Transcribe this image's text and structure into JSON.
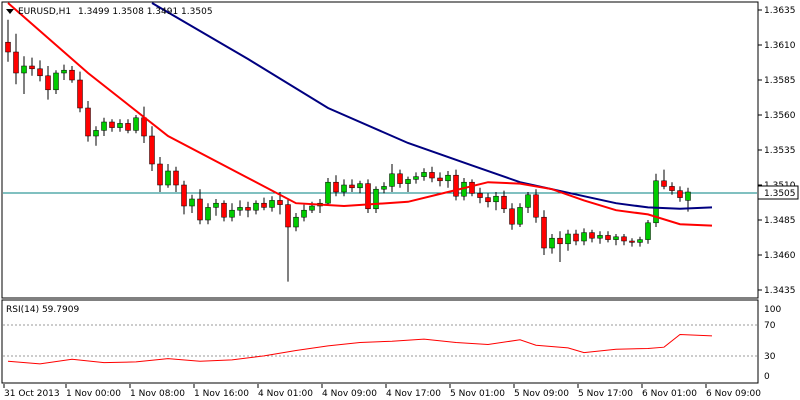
{
  "header": {
    "menu_icon": "triangle-down-icon",
    "symbol_label": "EURUSD,H1",
    "ohlc_label": "1.3499 1.3508 1.3491 1.3505"
  },
  "price_axis": {
    "labels": [
      "1.3635",
      "1.3610",
      "1.3585",
      "1.3560",
      "1.3535",
      "1.3510",
      "1.3485",
      "1.3460",
      "1.3435"
    ],
    "current_price_label": "1.3505"
  },
  "rsi_panel": {
    "title": "RSI(14) 59.7909",
    "axis_labels": [
      "100",
      "70",
      "30",
      "0"
    ]
  },
  "time_axis": {
    "labels": [
      "31 Oct 2013",
      "1 Nov 00:00",
      "1 Nov 08:00",
      "1 Nov 16:00",
      "4 Nov 01:00",
      "4 Nov 09:00",
      "4 Nov 17:00",
      "5 Nov 01:00",
      "5 Nov 09:00",
      "5 Nov 17:00",
      "6 Nov 01:00",
      "6 Nov 09:00"
    ]
  },
  "colors": {
    "background": "#ffffff",
    "bull_candle": "#00cc00",
    "bear_candle": "#ff0000",
    "wick": "#000000",
    "ma_fast": "#ff0000",
    "ma_slow": "#000080",
    "rsi_line": "#ff0000",
    "current_price_line": "#008080",
    "level_line": "#999999"
  },
  "chart_data": [
    {
      "type": "candlestick",
      "title": "EURUSD,H1",
      "ylim": [
        1.3425,
        1.3645
      ],
      "y_ticks": [
        1.3635,
        1.361,
        1.3585,
        1.356,
        1.3535,
        1.351,
        1.3485,
        1.346,
        1.3435
      ],
      "grid": false,
      "current_price": 1.3505,
      "candles": [
        [
          1.3612,
          1.3628,
          1.3598,
          1.3605
        ],
        [
          1.3605,
          1.3618,
          1.3582,
          1.359
        ],
        [
          1.359,
          1.3602,
          1.3575,
          1.3595
        ],
        [
          1.3595,
          1.3601,
          1.3588,
          1.3593
        ],
        [
          1.3593,
          1.3599,
          1.3584,
          1.3588
        ],
        [
          1.3588,
          1.3595,
          1.3571,
          1.3578
        ],
        [
          1.3578,
          1.3592,
          1.3575,
          1.359
        ],
        [
          1.359,
          1.3596,
          1.3585,
          1.3592
        ],
        [
          1.3592,
          1.3595,
          1.3583,
          1.3585
        ],
        [
          1.3585,
          1.3591,
          1.3562,
          1.3565
        ],
        [
          1.3565,
          1.357,
          1.3541,
          1.3545
        ],
        [
          1.3545,
          1.3552,
          1.3538,
          1.3549
        ],
        [
          1.3549,
          1.3558,
          1.3545,
          1.3555
        ],
        [
          1.3555,
          1.3557,
          1.3548,
          1.3551
        ],
        [
          1.3551,
          1.3557,
          1.3548,
          1.3554
        ],
        [
          1.3554,
          1.3557,
          1.3547,
          1.3549
        ],
        [
          1.3549,
          1.356,
          1.3547,
          1.3558
        ],
        [
          1.3558,
          1.3566,
          1.354,
          1.3545
        ],
        [
          1.3545,
          1.3552,
          1.352,
          1.3525
        ],
        [
          1.3525,
          1.353,
          1.3505,
          1.351
        ],
        [
          1.351,
          1.3525,
          1.3508,
          1.352
        ],
        [
          1.352,
          1.3523,
          1.3505,
          1.351
        ],
        [
          1.351,
          1.3513,
          1.3489,
          1.3495
        ],
        [
          1.3495,
          1.3503,
          1.349,
          1.35
        ],
        [
          1.35,
          1.3507,
          1.3482,
          1.3485
        ],
        [
          1.3485,
          1.3497,
          1.3482,
          1.3494
        ],
        [
          1.3494,
          1.35,
          1.3488,
          1.3497
        ],
        [
          1.3497,
          1.3499,
          1.3484,
          1.3487
        ],
        [
          1.3487,
          1.3497,
          1.3484,
          1.3492
        ],
        [
          1.3492,
          1.3499,
          1.3488,
          1.3494
        ],
        [
          1.3494,
          1.3498,
          1.3487,
          1.3492
        ],
        [
          1.3492,
          1.3499,
          1.3489,
          1.3497
        ],
        [
          1.3497,
          1.3501,
          1.3492,
          1.3494
        ],
        [
          1.3494,
          1.3502,
          1.3491,
          1.3499
        ],
        [
          1.3499,
          1.3505,
          1.3489,
          1.3496
        ],
        [
          1.3496,
          1.35,
          1.3441,
          1.348
        ],
        [
          1.348,
          1.349,
          1.3477,
          1.3487
        ],
        [
          1.3487,
          1.3496,
          1.3484,
          1.3492
        ],
        [
          1.3492,
          1.3498,
          1.349,
          1.3495
        ],
        [
          1.3495,
          1.35,
          1.349,
          1.3497
        ],
        [
          1.3497,
          1.3515,
          1.3495,
          1.3512
        ],
        [
          1.3512,
          1.3517,
          1.3502,
          1.3505
        ],
        [
          1.3505,
          1.3514,
          1.3502,
          1.351
        ],
        [
          1.351,
          1.3514,
          1.3505,
          1.3508
        ],
        [
          1.3508,
          1.3513,
          1.3504,
          1.3511
        ],
        [
          1.3511,
          1.3514,
          1.349,
          1.3493
        ],
        [
          1.3493,
          1.3509,
          1.349,
          1.3507
        ],
        [
          1.3507,
          1.3512,
          1.3504,
          1.3509
        ],
        [
          1.3509,
          1.3525,
          1.3505,
          1.3518
        ],
        [
          1.3518,
          1.3521,
          1.3508,
          1.3511
        ],
        [
          1.3511,
          1.3516,
          1.3505,
          1.3514
        ],
        [
          1.3514,
          1.3519,
          1.3511,
          1.3516
        ],
        [
          1.3516,
          1.3522,
          1.3513,
          1.3519
        ],
        [
          1.3519,
          1.3523,
          1.3512,
          1.3515
        ],
        [
          1.3515,
          1.3519,
          1.3509,
          1.3513
        ],
        [
          1.3513,
          1.352,
          1.3508,
          1.3517
        ],
        [
          1.3517,
          1.3521,
          1.3499,
          1.3502
        ],
        [
          1.3502,
          1.3515,
          1.3499,
          1.3512
        ],
        [
          1.3512,
          1.3514,
          1.3502,
          1.3504
        ],
        [
          1.3504,
          1.3508,
          1.3497,
          1.3501
        ],
        [
          1.3501,
          1.3504,
          1.3494,
          1.3498
        ],
        [
          1.3498,
          1.3505,
          1.3492,
          1.3502
        ],
        [
          1.3502,
          1.3506,
          1.349,
          1.3493
        ],
        [
          1.3493,
          1.3497,
          1.3478,
          1.3482
        ],
        [
          1.3482,
          1.3497,
          1.348,
          1.3494
        ],
        [
          1.3494,
          1.3505,
          1.349,
          1.3503
        ],
        [
          1.3503,
          1.3507,
          1.3483,
          1.3487
        ],
        [
          1.3487,
          1.3492,
          1.346,
          1.3465
        ],
        [
          1.3465,
          1.3475,
          1.3461,
          1.3472
        ],
        [
          1.3472,
          1.3477,
          1.3455,
          1.3468
        ],
        [
          1.3468,
          1.3478,
          1.3463,
          1.3475
        ],
        [
          1.3475,
          1.3478,
          1.3467,
          1.347
        ],
        [
          1.347,
          1.3479,
          1.3467,
          1.3476
        ],
        [
          1.3476,
          1.3478,
          1.3469,
          1.3472
        ],
        [
          1.3472,
          1.3477,
          1.3468,
          1.3474
        ],
        [
          1.3474,
          1.3477,
          1.3469,
          1.3471
        ],
        [
          1.3471,
          1.3475,
          1.3467,
          1.3473
        ],
        [
          1.3473,
          1.3475,
          1.3467,
          1.347
        ],
        [
          1.347,
          1.3472,
          1.3466,
          1.3469
        ],
        [
          1.3469,
          1.3473,
          1.3466,
          1.3471
        ],
        [
          1.3471,
          1.3485,
          1.3468,
          1.3483
        ],
        [
          1.3483,
          1.3518,
          1.348,
          1.3513
        ],
        [
          1.3513,
          1.3521,
          1.3507,
          1.3509
        ],
        [
          1.3509,
          1.3512,
          1.3503,
          1.3506
        ],
        [
          1.3506,
          1.3509,
          1.3498,
          1.3501
        ],
        [
          1.3499,
          1.3508,
          1.3491,
          1.3505
        ]
      ],
      "ma_fast": [
        [
          0,
          1.365
        ],
        [
          10,
          1.359
        ],
        [
          20,
          1.3545
        ],
        [
          30,
          1.3515
        ],
        [
          36,
          1.3497
        ],
        [
          42,
          1.3495
        ],
        [
          50,
          1.3498
        ],
        [
          55,
          1.3505
        ],
        [
          60,
          1.3512
        ],
        [
          64,
          1.3511
        ],
        [
          68,
          1.3507
        ],
        [
          72,
          1.3499
        ],
        [
          76,
          1.3492
        ],
        [
          80,
          1.3489
        ],
        [
          84,
          1.3482
        ],
        [
          88,
          1.3481
        ]
      ],
      "ma_slow": [
        [
          18,
          1.365
        ],
        [
          30,
          1.36
        ],
        [
          40,
          1.3565
        ],
        [
          50,
          1.354
        ],
        [
          58,
          1.3524
        ],
        [
          64,
          1.3512
        ],
        [
          68,
          1.3507
        ],
        [
          72,
          1.3502
        ],
        [
          76,
          1.3497
        ],
        [
          80,
          1.3494
        ],
        [
          84,
          1.3493
        ],
        [
          88,
          1.3494
        ]
      ]
    },
    {
      "type": "line",
      "title": "RSI(14) 59.7909",
      "ylim": [
        0,
        100
      ],
      "y_ticks": [
        100,
        70,
        30,
        0
      ],
      "levels": [
        70,
        30
      ],
      "x": [
        0,
        4,
        8,
        12,
        16,
        20,
        24,
        28,
        32,
        36,
        40,
        44,
        48,
        52,
        56,
        60,
        64,
        66,
        70,
        72,
        76,
        80,
        82,
        84,
        88
      ],
      "values": [
        22,
        18,
        25,
        20,
        21,
        26,
        22,
        24,
        30,
        38,
        45,
        50,
        52,
        55,
        50,
        47,
        54,
        46,
        42,
        35,
        40,
        41,
        43,
        62,
        59.79
      ]
    }
  ]
}
